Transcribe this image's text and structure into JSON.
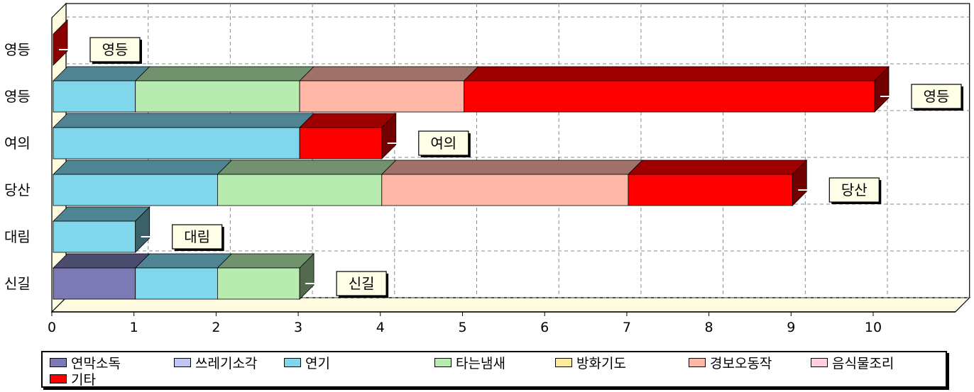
{
  "chart_data": {
    "type": "bar",
    "orientation": "horizontal",
    "stacked": true,
    "three_d": true,
    "categories": [
      "신길",
      "대림",
      "당산",
      "여의",
      "영등",
      "영등"
    ],
    "series": [
      {
        "name": "연막소독",
        "color": "#7B7AB5",
        "values": [
          1,
          0,
          0,
          0,
          0,
          0
        ]
      },
      {
        "name": "쓰레기소각",
        "color": "#BFC6F2",
        "values": [
          0,
          0,
          0,
          0,
          0,
          0
        ]
      },
      {
        "name": "연기",
        "color": "#80D7EC",
        "values": [
          1,
          1,
          2,
          3,
          1,
          0
        ]
      },
      {
        "name": "타는냄새",
        "color": "#B8EBB0",
        "values": [
          1,
          0,
          2,
          0,
          2,
          0
        ]
      },
      {
        "name": "방화기도",
        "color": "#FFE8A0",
        "values": [
          0,
          0,
          0,
          0,
          0,
          0
        ]
      },
      {
        "name": "경보오동작",
        "color": "#FFB8A8",
        "values": [
          0,
          0,
          3,
          0,
          2,
          0
        ]
      },
      {
        "name": "음식물조리",
        "color": "#FFD0E0",
        "values": [
          0,
          0,
          0,
          0,
          0,
          0
        ]
      },
      {
        "name": "기타",
        "color": "#FF0000",
        "values": [
          0,
          0,
          2,
          1,
          5,
          0
        ]
      }
    ],
    "xlim": [
      0,
      10
    ],
    "xticks": [
      "0",
      "1",
      "2",
      "3",
      "4",
      "5",
      "6",
      "7",
      "8",
      "9",
      "10"
    ],
    "data_labels": [
      "신길",
      "대림",
      "당산",
      "여의",
      "영등",
      "영등"
    ],
    "grid": true,
    "legend_position": "bottom"
  }
}
